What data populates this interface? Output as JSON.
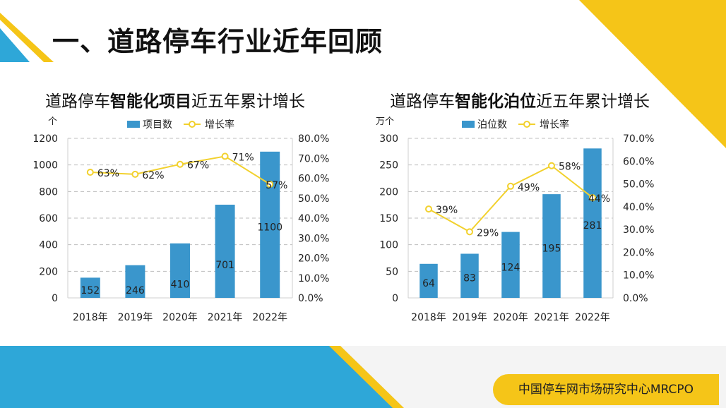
{
  "page": {
    "title": "一、道路停车行业近年回顾",
    "footer": "中国停车网市场研究中心MRCPO"
  },
  "colors": {
    "bar": "#3A96CC",
    "line": "#F2D12E",
    "accent_yellow": "#F5C518",
    "accent_blue": "#2EA7D8"
  },
  "chart_data": [
    {
      "type": "bar",
      "title_parts": [
        "道路停车",
        "智能化项目",
        "近五年累计增长"
      ],
      "y_unit": "个",
      "categories": [
        "2018年",
        "2019年",
        "2020年",
        "2021年",
        "2022年"
      ],
      "bar_series": {
        "name": "项目数",
        "values": [
          152,
          246,
          410,
          701,
          1100
        ]
      },
      "line_series": {
        "name": "增长率",
        "values": [
          63,
          62,
          67,
          71,
          57
        ],
        "labels": [
          "63%",
          "62%",
          "67%",
          "71%",
          "57%"
        ]
      },
      "ylim": [
        0,
        1200
      ],
      "y_ticks": [
        "0",
        "200",
        "400",
        "600",
        "800",
        "1000",
        "1200"
      ],
      "y2lim": [
        0,
        80
      ],
      "y2_ticks": [
        "0.0%",
        "10.0%",
        "20.0%",
        "30.0%",
        "40.0%",
        "50.0%",
        "60.0%",
        "70.0%",
        "80.0%"
      ],
      "grid": true,
      "legend": "top"
    },
    {
      "type": "bar",
      "title_parts": [
        "道路停车",
        "智能化泊位",
        "近五年累计增长"
      ],
      "y_unit": "万个",
      "categories": [
        "2018年",
        "2019年",
        "2020年",
        "2021年",
        "2022年"
      ],
      "bar_series": {
        "name": "泊位数",
        "values": [
          64,
          83,
          124,
          195,
          281
        ]
      },
      "line_series": {
        "name": "增长率",
        "values": [
          39,
          29,
          49,
          58,
          44
        ],
        "labels": [
          "39%",
          "29%",
          "49%",
          "58%",
          "44%"
        ]
      },
      "ylim": [
        0,
        300
      ],
      "y_ticks": [
        "0",
        "50",
        "100",
        "150",
        "200",
        "250",
        "300"
      ],
      "y2lim": [
        0,
        70
      ],
      "y2_ticks": [
        "0.0%",
        "10.0%",
        "20.0%",
        "30.0%",
        "40.0%",
        "50.0%",
        "60.0%",
        "70.0%"
      ],
      "grid": true,
      "legend": "top"
    }
  ]
}
